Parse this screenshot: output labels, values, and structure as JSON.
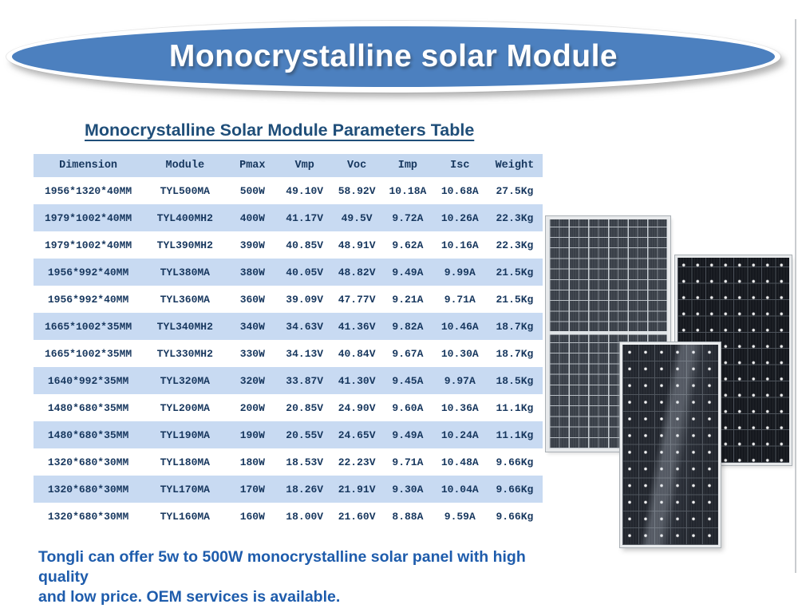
{
  "banner": {
    "title": "Monocrystalline solar Module"
  },
  "section_title": "Monocrystalline Solar Module Parameters Table",
  "table": {
    "columns": [
      "Dimension",
      "Module",
      "Pmax",
      "Vmp",
      "Voc",
      "Imp",
      "Isc",
      "Weight"
    ],
    "rows": [
      [
        "1956*1320*40MM",
        "TYL500MA",
        "500W",
        "49.10V",
        "58.92V",
        "10.18A",
        "10.68A",
        "27.5Kg"
      ],
      [
        "1979*1002*40MM",
        "TYL400MH2",
        "400W",
        "41.17V",
        "49.5V",
        "9.72A",
        "10.26A",
        "22.3Kg"
      ],
      [
        "1979*1002*40MM",
        "TYL390MH2",
        "390W",
        "40.85V",
        "48.91V",
        "9.62A",
        "10.16A",
        "22.3Kg"
      ],
      [
        "1956*992*40MM",
        "TYL380MA",
        "380W",
        "40.05V",
        "48.82V",
        "9.49A",
        "9.99A",
        "21.5Kg"
      ],
      [
        "1956*992*40MM",
        "TYL360MA",
        "360W",
        "39.09V",
        "47.77V",
        "9.21A",
        "9.71A",
        "21.5Kg"
      ],
      [
        "1665*1002*35MM",
        "TYL340MH2",
        "340W",
        "34.63V",
        "41.36V",
        "9.82A",
        "10.46A",
        "18.7Kg"
      ],
      [
        "1665*1002*35MM",
        "TYL330MH2",
        "330W",
        "34.13V",
        "40.84V",
        "9.67A",
        "10.30A",
        "18.7Kg"
      ],
      [
        "1640*992*35MM",
        "TYL320MA",
        "320W",
        "33.87V",
        "41.30V",
        "9.45A",
        "9.97A",
        "18.5Kg"
      ],
      [
        "1480*680*35MM",
        "TYL200MA",
        "200W",
        "20.85V",
        "24.90V",
        "9.60A",
        "10.36A",
        "11.1Kg"
      ],
      [
        "1480*680*35MM",
        "TYL190MA",
        "190W",
        "20.55V",
        "24.65V",
        "9.49A",
        "10.24A",
        "11.1Kg"
      ],
      [
        "1320*680*30MM",
        "TYL180MA",
        "180W",
        "18.53V",
        "22.23V",
        "9.71A",
        "10.48A",
        "9.66Kg"
      ],
      [
        "1320*680*30MM",
        "TYL170MA",
        "170W",
        "18.26V",
        "21.91V",
        "9.30A",
        "10.04A",
        "9.66Kg"
      ],
      [
        "1320*680*30MM",
        "TYL160MA",
        "160W",
        "18.00V",
        "21.60V",
        "8.88A",
        "9.59A",
        "9.66Kg"
      ]
    ]
  },
  "footer": {
    "line1": "Tongli can offer 5w to 500W monocrystalline solar panel with high quality",
    "line2": "and low price. OEM services is available."
  },
  "images": {
    "left_panel": "half-cut-monocrystalline-solar-panel",
    "right_panel": "monocrystalline-solar-panel",
    "front_panel": "monocrystalline-solar-panel-with-reflection"
  },
  "colors": {
    "banner_blue": "#4c80bf",
    "title_navy": "#1f4e79",
    "table_text_navy": "#17375e",
    "row_highlight_blue": "#c8daf2",
    "header_row_blue": "#c5d8f0",
    "footer_blue": "#1e5cac"
  }
}
